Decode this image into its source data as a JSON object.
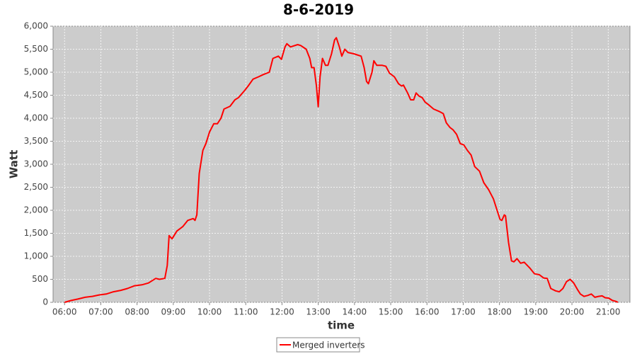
{
  "chart_data": {
    "type": "line",
    "title": "8-6-2019",
    "xlabel": "time",
    "ylabel": "Watt",
    "x": [
      360,
      371,
      382,
      394,
      406,
      417,
      429,
      441,
      453,
      464,
      476,
      488,
      499,
      511,
      517,
      526,
      530,
      533,
      538,
      546,
      556,
      564,
      573,
      576,
      579,
      583,
      589,
      594,
      600,
      607,
      613,
      619,
      624,
      634,
      642,
      648,
      658,
      664,
      672,
      681,
      689,
      699,
      705,
      714,
      719,
      725,
      728,
      734,
      746,
      751,
      760,
      766,
      769,
      773,
      777,
      780,
      783,
      787,
      792,
      796,
      802,
      807,
      810,
      815,
      819,
      824,
      829,
      839,
      851,
      856,
      860,
      863,
      869,
      872,
      877,
      886,
      892,
      898,
      906,
      913,
      918,
      921,
      928,
      933,
      938,
      942,
      947,
      952,
      957,
      962,
      971,
      980,
      987,
      992,
      998,
      1003,
      1009,
      1015,
      1021,
      1027,
      1033,
      1039,
      1047,
      1054,
      1062,
      1070,
      1076,
      1081,
      1084,
      1088,
      1090,
      1095,
      1100,
      1104,
      1109,
      1115,
      1121,
      1130,
      1138,
      1146,
      1153,
      1159,
      1165,
      1173,
      1179,
      1185,
      1191,
      1197,
      1203,
      1209,
      1214,
      1220,
      1226,
      1232,
      1238,
      1244,
      1250,
      1255,
      1261,
      1267,
      1273,
      1276
    ],
    "series": [
      {
        "name": "Merged inverters",
        "color": "#ff0000",
        "values": [
          0,
          40,
          70,
          110,
          130,
          160,
          180,
          230,
          260,
          300,
          360,
          380,
          420,
          520,
          500,
          520,
          800,
          1450,
          1380,
          1550,
          1650,
          1780,
          1820,
          1780,
          1900,
          2800,
          3300,
          3450,
          3700,
          3880,
          3880,
          4000,
          4200,
          4260,
          4400,
          4450,
          4600,
          4700,
          4850,
          4900,
          4950,
          5000,
          5300,
          5350,
          5280,
          5550,
          5620,
          5550,
          5600,
          5580,
          5500,
          5300,
          5100,
          5100,
          4700,
          4250,
          4900,
          5300,
          5150,
          5150,
          5400,
          5700,
          5750,
          5550,
          5350,
          5500,
          5430,
          5400,
          5350,
          5100,
          4800,
          4750,
          5000,
          5250,
          5150,
          5150,
          5130,
          4980,
          4900,
          4750,
          4700,
          4720,
          4550,
          4400,
          4400,
          4550,
          4480,
          4450,
          4350,
          4300,
          4200,
          4150,
          4100,
          3900,
          3800,
          3750,
          3650,
          3450,
          3420,
          3300,
          3200,
          2950,
          2850,
          2600,
          2450,
          2250,
          2000,
          1800,
          1780,
          1900,
          1880,
          1300,
          900,
          880,
          950,
          850,
          870,
          750,
          620,
          600,
          530,
          520,
          300,
          250,
          230,
          300,
          450,
          500,
          420,
          280,
          180,
          130,
          150,
          180,
          110,
          130,
          140,
          100,
          90,
          40,
          20,
          0
        ]
      }
    ],
    "xlim": [
      341,
      1296
    ],
    "xticks": [
      {
        "value": 360,
        "label": "06:00"
      },
      {
        "value": 420,
        "label": "07:00"
      },
      {
        "value": 480,
        "label": "08:00"
      },
      {
        "value": 540,
        "label": "09:00"
      },
      {
        "value": 600,
        "label": "10:00"
      },
      {
        "value": 660,
        "label": "11:00"
      },
      {
        "value": 720,
        "label": "12:00"
      },
      {
        "value": 780,
        "label": "13:00"
      },
      {
        "value": 840,
        "label": "14:00"
      },
      {
        "value": 900,
        "label": "15:00"
      },
      {
        "value": 960,
        "label": "16:00"
      },
      {
        "value": 1020,
        "label": "17:00"
      },
      {
        "value": 1080,
        "label": "18:00"
      },
      {
        "value": 1140,
        "label": "19:00"
      },
      {
        "value": 1200,
        "label": "20:00"
      },
      {
        "value": 1260,
        "label": "21:00"
      }
    ],
    "ylim": [
      0,
      6000
    ],
    "yticks": [
      0,
      500,
      {
        "value": 1000,
        "label": "1,000"
      },
      {
        "value": 1500,
        "label": "1,500"
      },
      {
        "value": 2000,
        "label": "2,000"
      },
      {
        "value": 2500,
        "label": "2,500"
      },
      {
        "value": 3000,
        "label": "3,000"
      },
      {
        "value": 3500,
        "label": "3,500"
      },
      {
        "value": 4000,
        "label": "4,000"
      },
      {
        "value": 4500,
        "label": "4,500"
      },
      {
        "value": 5000,
        "label": "5,000"
      },
      {
        "value": 5500,
        "label": "5,500"
      },
      {
        "value": 6000,
        "label": "6,000"
      }
    ],
    "grid": true,
    "legend": "bottom"
  }
}
